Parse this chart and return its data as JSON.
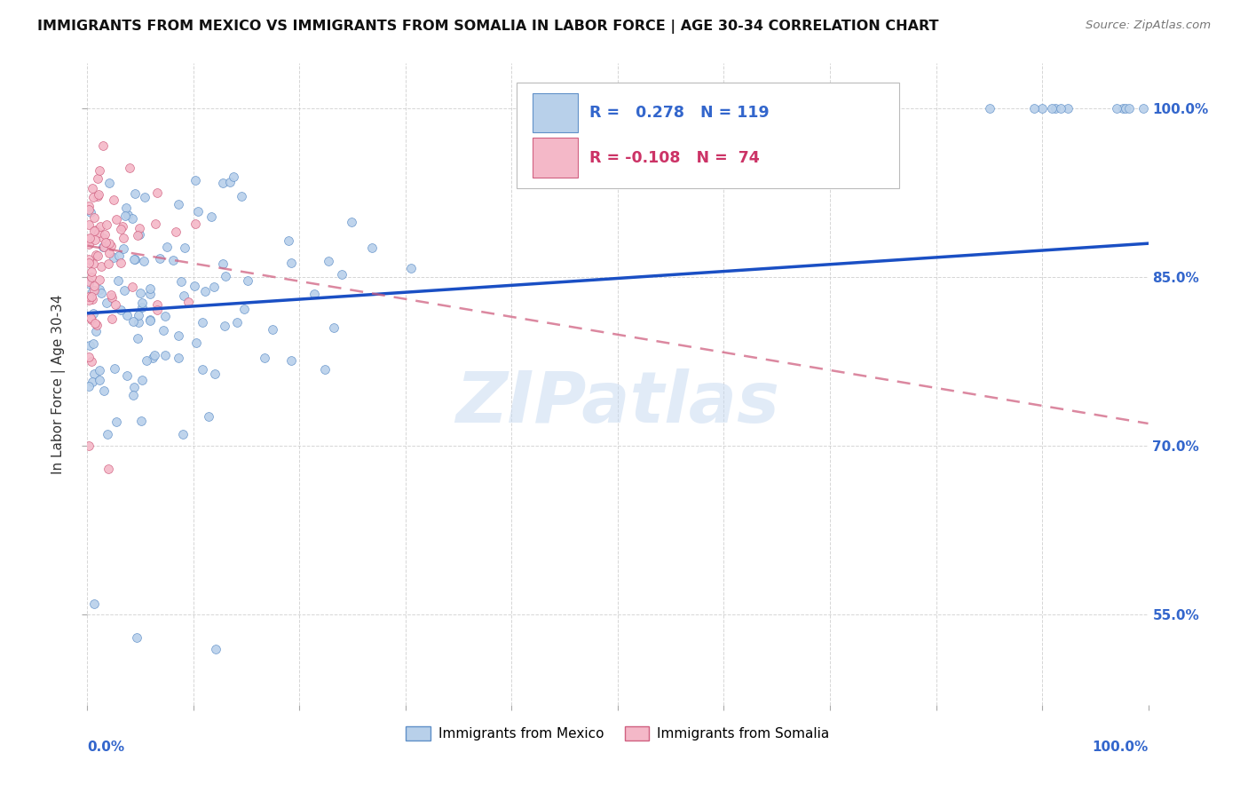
{
  "title": "IMMIGRANTS FROM MEXICO VS IMMIGRANTS FROM SOMALIA IN LABOR FORCE | AGE 30-34 CORRELATION CHART",
  "source": "Source: ZipAtlas.com",
  "ylabel": "In Labor Force | Age 30-34",
  "legend_label1": "Immigrants from Mexico",
  "legend_label2": "Immigrants from Somalia",
  "R_mexico": 0.278,
  "N_mexico": 119,
  "R_somalia": -0.108,
  "N_somalia": 74,
  "color_mexico_fill": "#b8d0ea",
  "color_mexico_edge": "#6090c8",
  "color_somalia_fill": "#f4b8c8",
  "color_somalia_edge": "#d06080",
  "color_mexico_line": "#1a4fc4",
  "color_somalia_line": "#d06080",
  "watermark": "ZIPatlas",
  "xlim": [
    0.0,
    1.0
  ],
  "ylim": [
    0.47,
    1.04
  ],
  "yticks": [
    0.55,
    0.7,
    0.85,
    1.0
  ],
  "ytick_labels": [
    "55.0%",
    "70.0%",
    "85.0%",
    "100.0%"
  ],
  "mexico_line_y0": 0.818,
  "mexico_line_y1": 0.88,
  "somalia_line_y0": 0.878,
  "somalia_line_y1": 0.72
}
